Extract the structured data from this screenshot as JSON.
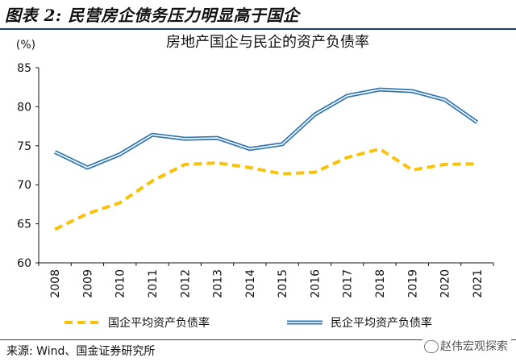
{
  "header": {
    "title": "图表 2: 民营房企债务压力明显高于国企"
  },
  "footer": {
    "source": "来源: Wind、国金证券研究所",
    "watermark": "赵伟宏观探索"
  },
  "chart_data": {
    "type": "line",
    "title": "房地产国企与民企的资产负债率",
    "ylabel": "(%)",
    "xlabel": "",
    "categories": [
      "2008",
      "2009",
      "2010",
      "2011",
      "2012",
      "2013",
      "2014",
      "2015",
      "2016",
      "2017",
      "2018",
      "2019",
      "2020",
      "2021"
    ],
    "ylim": [
      60,
      85
    ],
    "yticks": [
      60,
      65,
      70,
      75,
      80,
      85
    ],
    "grid": false,
    "legend_position": "bottom",
    "series": [
      {
        "name": "国企平均资产负债率",
        "style": "dashed",
        "color": "#F9C20A",
        "values": [
          64.3,
          66.3,
          67.7,
          70.5,
          72.6,
          72.8,
          72.2,
          71.4,
          71.6,
          73.5,
          74.6,
          71.9,
          72.6,
          72.7
        ]
      },
      {
        "name": "民企平均资产负债率",
        "style": "double-line",
        "color": "#2E75B6",
        "values": [
          74.2,
          72.2,
          73.9,
          76.4,
          75.9,
          76.0,
          74.6,
          75.2,
          79.0,
          81.4,
          82.2,
          82.0,
          80.9,
          78.0
        ]
      }
    ]
  }
}
